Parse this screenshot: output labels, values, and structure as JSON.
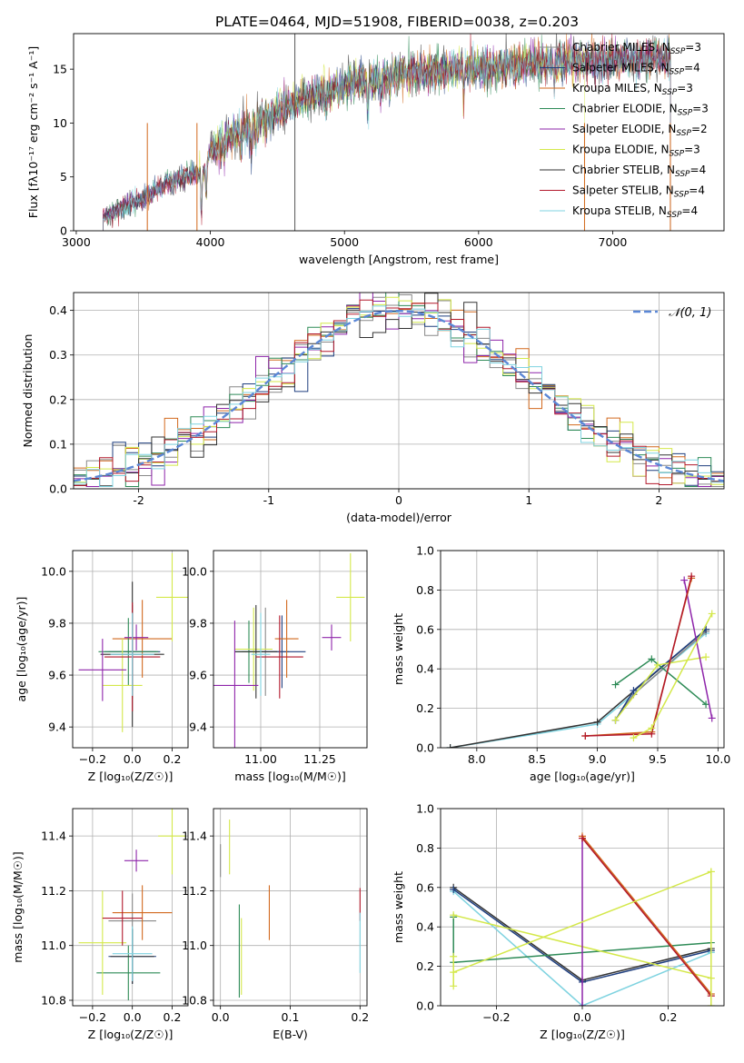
{
  "figure_title": "PLATE=0464, MJD=51908, FIBERID=0038, z=0.203",
  "models": [
    {
      "name": "Chabrier MILES",
      "nssp": "3",
      "color": "#888888"
    },
    {
      "name": "Salpeter MILES",
      "nssp": "4",
      "color": "#1f3f7f"
    },
    {
      "name": "Kroupa MILES",
      "nssp": "3",
      "color": "#d2691e"
    },
    {
      "name": "Chabrier ELODIE",
      "nssp": "3",
      "color": "#2e8b57"
    },
    {
      "name": "Salpeter ELODIE",
      "nssp": "2",
      "color": "#8e24aa"
    },
    {
      "name": "Kroupa ELODIE",
      "nssp": "3",
      "color": "#d4e84a"
    },
    {
      "name": "Chabrier STELIB",
      "nssp": "4",
      "color": "#333333"
    },
    {
      "name": "Salpeter STELIB",
      "nssp": "4",
      "color": "#b2182b"
    },
    {
      "name": "Kroupa STELIB",
      "nssp": "4",
      "color": "#7fd3e0"
    }
  ],
  "chart_data": [
    {
      "id": "spectrum",
      "type": "line",
      "xlabel": "wavelength [Angstrom, rest frame]",
      "ylabel": "Flux [fλ10⁻¹⁷ erg cm⁻² s⁻¹ A⁻¹]",
      "xlim": [
        2980,
        7830
      ],
      "ylim": [
        0,
        18.3
      ],
      "xticks": [
        3000,
        4000,
        5000,
        6000,
        7000
      ],
      "yticks": [
        0,
        5,
        10,
        15
      ],
      "grid": false,
      "legend_position": "top-right",
      "continuum": [
        [
          3200,
          1.3
        ],
        [
          3350,
          2.1
        ],
        [
          3550,
          3.4
        ],
        [
          3700,
          4.5
        ],
        [
          3850,
          5.2
        ],
        [
          3950,
          5.5
        ],
        [
          4000,
          7.4
        ],
        [
          4150,
          8.8
        ],
        [
          4300,
          9.6
        ],
        [
          4500,
          11.0
        ],
        [
          4700,
          12.3
        ],
        [
          4900,
          13.0
        ],
        [
          5100,
          13.8
        ],
        [
          5300,
          14.3
        ],
        [
          5500,
          14.7
        ],
        [
          5800,
          15.0
        ],
        [
          6100,
          15.2
        ],
        [
          6400,
          15.5
        ],
        [
          6700,
          15.7
        ],
        [
          7000,
          15.9
        ],
        [
          7300,
          16.0
        ],
        [
          7430,
          16.2
        ]
      ],
      "absorption_lines": [
        [
          3934,
          3.5
        ],
        [
          3969,
          3.0
        ],
        [
          4102,
          2.0
        ],
        [
          4227,
          1.5
        ],
        [
          4304,
          2.5
        ],
        [
          4340,
          2.0
        ],
        [
          4861,
          1.5
        ],
        [
          5175,
          3.0
        ],
        [
          5270,
          1.5
        ],
        [
          5335,
          1.0
        ],
        [
          5890,
          2.5
        ],
        [
          6563,
          1.5
        ],
        [
          6867,
          1.0
        ]
      ],
      "spike_x": 4630
    },
    {
      "id": "residuals",
      "type": "histogram",
      "xlabel": "(data-model)/error",
      "ylabel": "Normed distribution",
      "xlim": [
        -2.5,
        2.5
      ],
      "ylim": [
        0,
        0.44
      ],
      "xticks": [
        -2,
        -1,
        0,
        1,
        2
      ],
      "yticks": [
        0.0,
        0.1,
        0.2,
        0.3,
        0.4
      ],
      "grid": true,
      "bin_width": 0.1,
      "reference_curve": {
        "name": "N(0,1)",
        "label": "𝒩(0, 1)",
        "color": "#5b87d6",
        "style": "dashed"
      },
      "legend_position": "top-right"
    },
    {
      "id": "age_vs_Z",
      "type": "errorbar",
      "xlabel": "Z [log₁₀(Z/Z☉)]",
      "ylabel": "age  [log₁₀(age/yr)]",
      "xlim": [
        -0.3,
        0.28
      ],
      "ylim": [
        9.32,
        10.08
      ],
      "xticks": [
        -0.2,
        0.0,
        0.2
      ],
      "yticks": [
        9.4,
        9.6,
        9.8,
        10.0
      ],
      "grid": true,
      "points": [
        {
          "model": "Chabrier MILES",
          "x": 0.0,
          "xerr": 0.12,
          "y": 9.69,
          "yerr": 0.18
        },
        {
          "model": "Salpeter MILES",
          "x": 0.0,
          "xerr": 0.14,
          "y": 9.69,
          "yerr": 0.15
        },
        {
          "model": "Kroupa MILES",
          "x": 0.05,
          "xerr": 0.15,
          "y": 9.74,
          "yerr": 0.15
        },
        {
          "model": "Chabrier ELODIE",
          "x": -0.02,
          "xerr": 0.15,
          "y": 9.69,
          "yerr": 0.13
        },
        {
          "model": "Salpeter ELODIE",
          "x": 0.02,
          "xerr": 0.06,
          "y": 9.745,
          "yerr": 0.05
        },
        {
          "model": "Kroupa ELODIE",
          "x": -0.05,
          "xerr": 0.1,
          "y": 9.56,
          "yerr": 0.18
        },
        {
          "model": "Chabrier STELIB",
          "x": 0.0,
          "xerr": 0.16,
          "y": 9.68,
          "yerr": 0.28
        },
        {
          "model": "Salpeter STELIB",
          "x": 0.0,
          "xerr": 0.14,
          "y": 9.67,
          "yerr": 0.21
        },
        {
          "model": "Kroupa STELIB",
          "x": 0.0,
          "xerr": 0.11,
          "y": 9.68,
          "yerr": 0.16
        },
        {
          "model": "Salpeter ELODIE",
          "x": -0.15,
          "xerr": 0.12,
          "y": 9.62,
          "yerr": 0.12
        },
        {
          "model": "Kroupa ELODIE",
          "x": 0.2,
          "xerr": 0.08,
          "y": 9.9,
          "yerr": 0.17
        }
      ]
    },
    {
      "id": "age_vs_mass",
      "type": "errorbar",
      "xlabel": "mass [log₁₀(M/M☉)]",
      "ylabel": "",
      "xlim": [
        10.8,
        11.45
      ],
      "ylim": [
        9.32,
        10.08
      ],
      "xticks": [
        11.0,
        11.25
      ],
      "yticks": [
        9.4,
        9.6,
        9.8,
        10.0
      ],
      "grid": true,
      "points": [
        {
          "model": "Chabrier MILES",
          "x": 11.02,
          "xerr": 0.1,
          "y": 9.69,
          "yerr": 0.17
        },
        {
          "model": "Salpeter MILES",
          "x": 11.09,
          "xerr": 0.1,
          "y": 9.69,
          "yerr": 0.14
        },
        {
          "model": "Kroupa MILES",
          "x": 11.11,
          "xerr": 0.05,
          "y": 9.74,
          "yerr": 0.15
        },
        {
          "model": "Chabrier ELODIE",
          "x": 10.95,
          "xerr": 0.06,
          "y": 9.69,
          "yerr": 0.12
        },
        {
          "model": "Salpeter ELODIE",
          "x": 11.3,
          "xerr": 0.04,
          "y": 9.745,
          "yerr": 0.05
        },
        {
          "model": "Kroupa ELODIE",
          "x": 10.97,
          "xerr": 0.08,
          "y": 9.7,
          "yerr": 0.16
        },
        {
          "model": "Chabrier STELIB",
          "x": 10.98,
          "xerr": 0.09,
          "y": 9.69,
          "yerr": 0.18
        },
        {
          "model": "Salpeter STELIB",
          "x": 11.08,
          "xerr": 0.1,
          "y": 9.67,
          "yerr": 0.16
        },
        {
          "model": "Kroupa STELIB",
          "x": 11.0,
          "xerr": 0.04,
          "y": 9.68,
          "yerr": 0.16
        },
        {
          "model": "Salpeter ELODIE",
          "x": 10.89,
          "xerr": 0.1,
          "y": 9.56,
          "yerr": 0.25
        },
        {
          "model": "Kroupa ELODIE",
          "x": 11.38,
          "xerr": 0.06,
          "y": 9.9,
          "yerr": 0.17
        }
      ]
    },
    {
      "id": "weight_vs_age",
      "type": "line",
      "xlabel": "age  [log₁₀(age/yr)]",
      "ylabel": "mass weight",
      "xlim": [
        7.7,
        10.05
      ],
      "ylim": [
        0,
        1
      ],
      "xticks": [
        8.0,
        8.5,
        9.0,
        9.5,
        10.0
      ],
      "yticks": [
        0.0,
        0.2,
        0.4,
        0.6,
        0.8,
        1.0
      ],
      "grid": true,
      "series": [
        {
          "model": "Kroupa STELIB",
          "x": [
            7.78,
            9.0,
            9.9
          ],
          "y": [
            0.0,
            0.12,
            0.58
          ]
        },
        {
          "model": "Chabrier STELIB",
          "x": [
            7.78,
            9.0,
            9.9
          ],
          "y": [
            0.0,
            0.13,
            0.6
          ]
        },
        {
          "model": "Chabrier MILES",
          "x": [
            9.15,
            9.3,
            9.9
          ],
          "y": [
            0.14,
            0.27,
            0.59
          ]
        },
        {
          "model": "Salpeter MILES",
          "x": [
            9.15,
            9.3,
            9.9
          ],
          "y": [
            0.14,
            0.29,
            0.6
          ]
        },
        {
          "model": "Chabrier ELODIE",
          "x": [
            9.15,
            9.45,
            9.9
          ],
          "y": [
            0.32,
            0.45,
            0.22
          ]
        },
        {
          "model": "Kroupa ELODIE",
          "x": [
            9.15,
            9.5,
            9.9
          ],
          "y": [
            0.14,
            0.42,
            0.46
          ]
        },
        {
          "model": "Salpeter ELODIE",
          "x": [
            9.72,
            9.95
          ],
          "y": [
            0.85,
            0.15
          ]
        },
        {
          "model": "Kroupa MILES",
          "x": [
            8.9,
            9.45,
            9.78
          ],
          "y": [
            0.06,
            0.08,
            0.86
          ]
        },
        {
          "model": "Salpeter STELIB",
          "x": [
            8.9,
            9.45,
            9.78
          ],
          "y": [
            0.06,
            0.07,
            0.87
          ]
        },
        {
          "model": "Kroupa ELODIE",
          "x": [
            9.3,
            9.45,
            9.95
          ],
          "y": [
            0.05,
            0.1,
            0.68
          ]
        }
      ]
    },
    {
      "id": "mass_vs_Z",
      "type": "errorbar",
      "xlabel": "Z [log₁₀(Z/Z☉)]",
      "ylabel": "mass [log₁₀(M/M☉)]",
      "xlim": [
        -0.3,
        0.28
      ],
      "ylim": [
        10.78,
        11.5
      ],
      "xticks": [
        -0.2,
        0.0,
        0.2
      ],
      "yticks": [
        10.8,
        11.0,
        11.2,
        11.4
      ],
      "grid": true,
      "points": [
        {
          "model": "Chabrier MILES",
          "x": 0.0,
          "xerr": 0.12,
          "y": 11.09,
          "yerr": 0.1
        },
        {
          "model": "Salpeter MILES",
          "x": 0.0,
          "xerr": 0.12,
          "y": 10.96,
          "yerr": 0.1
        },
        {
          "model": "Kroupa MILES",
          "x": 0.05,
          "xerr": 0.15,
          "y": 11.12,
          "yerr": 0.1
        },
        {
          "model": "Chabrier ELODIE",
          "x": -0.02,
          "xerr": 0.16,
          "y": 10.9,
          "yerr": 0.1
        },
        {
          "model": "Salpeter ELODIE",
          "x": 0.02,
          "xerr": 0.06,
          "y": 11.31,
          "yerr": 0.04
        },
        {
          "model": "Kroupa ELODIE",
          "x": -0.15,
          "xerr": 0.12,
          "y": 11.01,
          "yerr": 0.19
        },
        {
          "model": "Chabrier STELIB",
          "x": 0.0,
          "xerr": 0.11,
          "y": 10.96,
          "yerr": 0.1
        },
        {
          "model": "Salpeter STELIB",
          "x": -0.05,
          "xerr": 0.1,
          "y": 11.1,
          "yerr": 0.1
        },
        {
          "model": "Kroupa STELIB",
          "x": 0.0,
          "xerr": 0.1,
          "y": 10.97,
          "yerr": 0.1
        },
        {
          "model": "Kroupa ELODIE",
          "x": 0.2,
          "xerr": 0.07,
          "y": 11.4,
          "yerr": 0.14
        }
      ]
    },
    {
      "id": "mass_vs_ebv",
      "type": "errorbar",
      "xlabel": "E(B-V)",
      "ylabel": "",
      "xlim": [
        -0.01,
        0.21
      ],
      "ylim": [
        10.78,
        11.5
      ],
      "xticks": [
        0.0,
        0.1,
        0.2
      ],
      "yticks": [
        10.8,
        11.0,
        11.2,
        11.4
      ],
      "grid": true,
      "points": [
        {
          "model": "Chabrier MILES",
          "x": 0.0,
          "xerr": 0.0,
          "y": 11.31,
          "yerr": 0.06
        },
        {
          "model": "Kroupa ELODIE",
          "x": 0.013,
          "xerr": 0.0,
          "y": 11.36,
          "yerr": 0.1
        },
        {
          "model": "Chabrier ELODIE",
          "x": 0.027,
          "xerr": 0.0,
          "y": 10.98,
          "yerr": 0.17
        },
        {
          "model": "Kroupa ELODIE",
          "x": 0.03,
          "xerr": 0.0,
          "y": 10.96,
          "yerr": 0.14
        },
        {
          "model": "Kroupa MILES",
          "x": 0.07,
          "xerr": 0.0,
          "y": 11.12,
          "yerr": 0.1
        },
        {
          "model": "Salpeter STELIB",
          "x": 0.2,
          "xerr": 0.0,
          "y": 11.15,
          "yerr": 0.06
        },
        {
          "model": "Kroupa STELIB",
          "x": 0.2,
          "xerr": 0.0,
          "y": 11.01,
          "yerr": 0.11
        }
      ]
    },
    {
      "id": "weight_vs_Z",
      "type": "line",
      "xlabel": "Z [log₁₀(Z/Z☉)]",
      "ylabel": "mass weight",
      "xlim": [
        -0.33,
        0.33
      ],
      "ylim": [
        0,
        1
      ],
      "xticks": [
        -0.2,
        0.0,
        0.2
      ],
      "yticks": [
        0.0,
        0.2,
        0.4,
        0.6,
        0.8,
        1.0
      ],
      "grid": true,
      "series": [
        {
          "model": "Chabrier STELIB",
          "x": [
            -0.3,
            0.0,
            0.3
          ],
          "y": [
            0.6,
            0.13,
            0.29
          ]
        },
        {
          "model": "Kroupa STELIB",
          "x": [
            -0.3,
            0.0,
            0.3
          ],
          "y": [
            0.58,
            0.0,
            0.27
          ]
        },
        {
          "model": "Salpeter MILES",
          "x": [
            -0.3,
            0.0,
            0.3
          ],
          "y": [
            0.59,
            0.12,
            0.28
          ]
        },
        {
          "model": "Chabrier ELODIE",
          "x": [
            -0.3,
            -0.3,
            0.3
          ],
          "y": [
            0.45,
            0.22,
            0.32
          ]
        },
        {
          "model": "Kroupa ELODIE",
          "x": [
            -0.3,
            0.3
          ],
          "y": [
            0.46,
            0.14
          ]
        },
        {
          "model": "Salpeter ELODIE",
          "x": [
            0.0,
            0.0
          ],
          "y": [
            0.85,
            0.0
          ]
        },
        {
          "model": "Kroupa MILES",
          "x": [
            0.0,
            0.3
          ],
          "y": [
            0.86,
            0.06
          ]
        },
        {
          "model": "Salpeter STELIB",
          "x": [
            0.0,
            0.3
          ],
          "y": [
            0.85,
            0.05
          ]
        },
        {
          "model": "Kroupa ELODIE",
          "x": [
            -0.3,
            0.3
          ],
          "y": [
            0.17,
            0.68
          ]
        },
        {
          "model": "Kroupa ELODIE",
          "x": [
            -0.3,
            -0.3
          ],
          "y": [
            0.1,
            0.25
          ]
        },
        {
          "model": "Kroupa ELODIE",
          "x": [
            0.3,
            0.3
          ],
          "y": [
            0.0,
            0.68
          ]
        }
      ]
    }
  ]
}
